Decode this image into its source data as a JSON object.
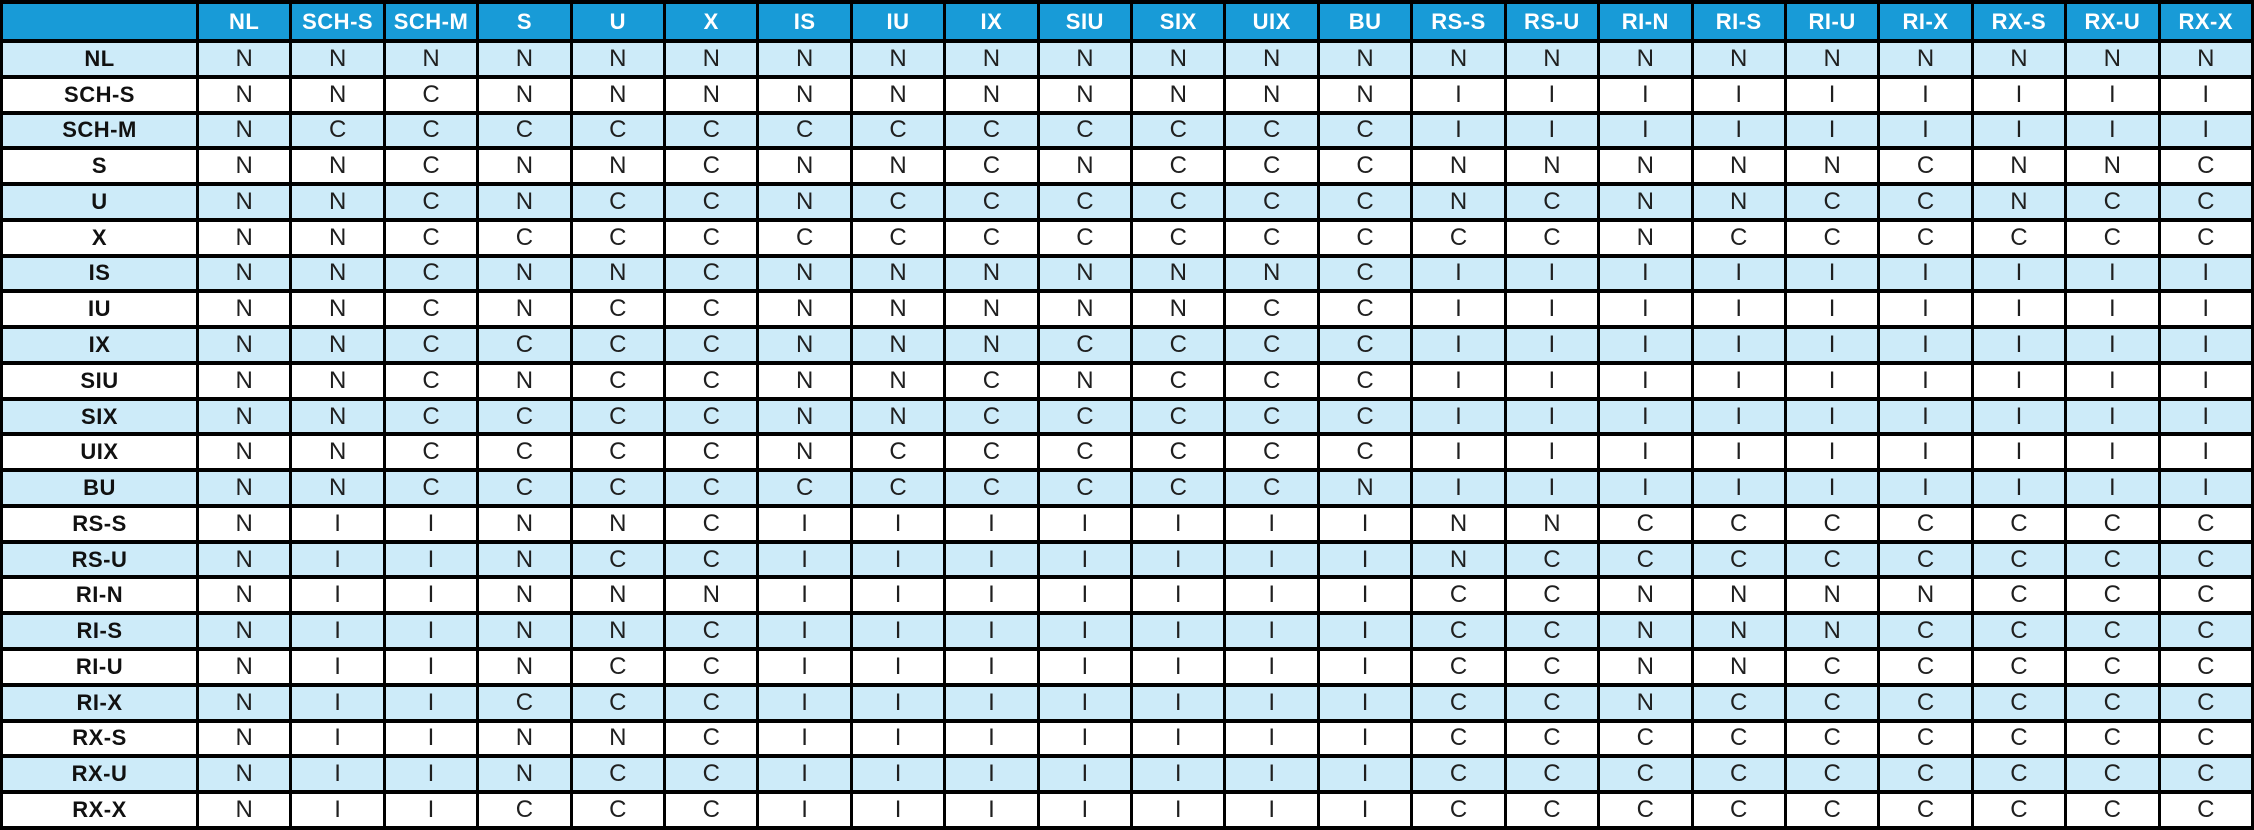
{
  "colors": {
    "header_bg": "#189BD7",
    "header_text": "#FFFFFF",
    "row_alt_bg": "#CDEBF9",
    "row_bg": "#FFFFFF",
    "border": "#000000",
    "cell_text": "#1F1F1F"
  },
  "chart_data": {
    "type": "table",
    "title": "",
    "corner_label": "",
    "legend_position": "none",
    "grid": true,
    "column_headers": [
      "NL",
      "SCH-S",
      "SCH-M",
      "S",
      "U",
      "X",
      "IS",
      "IU",
      "IX",
      "SIU",
      "SIX",
      "UIX",
      "BU",
      "RS-S",
      "RS-U",
      "RI-N",
      "RI-S",
      "RI-U",
      "RI-X",
      "RX-S",
      "RX-U",
      "RX-X"
    ],
    "row_headers": [
      "NL",
      "SCH-S",
      "SCH-M",
      "S",
      "U",
      "X",
      "IS",
      "IU",
      "IX",
      "SIU",
      "SIX",
      "UIX",
      "BU",
      "RS-S",
      "RS-U",
      "RI-N",
      "RI-S",
      "RI-U",
      "RI-X",
      "RX-S",
      "RX-U",
      "RX-X"
    ],
    "values": [
      [
        "N",
        "N",
        "N",
        "N",
        "N",
        "N",
        "N",
        "N",
        "N",
        "N",
        "N",
        "N",
        "N",
        "N",
        "N",
        "N",
        "N",
        "N",
        "N",
        "N",
        "N",
        "N"
      ],
      [
        "N",
        "N",
        "C",
        "N",
        "N",
        "N",
        "N",
        "N",
        "N",
        "N",
        "N",
        "N",
        "N",
        "I",
        "I",
        "I",
        "I",
        "I",
        "I",
        "I",
        "I",
        "I"
      ],
      [
        "N",
        "C",
        "C",
        "C",
        "C",
        "C",
        "C",
        "C",
        "C",
        "C",
        "C",
        "C",
        "C",
        "I",
        "I",
        "I",
        "I",
        "I",
        "I",
        "I",
        "I",
        "I"
      ],
      [
        "N",
        "N",
        "C",
        "N",
        "N",
        "C",
        "N",
        "N",
        "C",
        "N",
        "C",
        "C",
        "C",
        "N",
        "N",
        "N",
        "N",
        "N",
        "C",
        "N",
        "N",
        "C"
      ],
      [
        "N",
        "N",
        "C",
        "N",
        "C",
        "C",
        "N",
        "C",
        "C",
        "C",
        "C",
        "C",
        "C",
        "N",
        "C",
        "N",
        "N",
        "C",
        "C",
        "N",
        "C",
        "C"
      ],
      [
        "N",
        "N",
        "C",
        "C",
        "C",
        "C",
        "C",
        "C",
        "C",
        "C",
        "C",
        "C",
        "C",
        "C",
        "C",
        "N",
        "C",
        "C",
        "C",
        "C",
        "C",
        "C"
      ],
      [
        "N",
        "N",
        "C",
        "N",
        "N",
        "C",
        "N",
        "N",
        "N",
        "N",
        "N",
        "N",
        "C",
        "I",
        "I",
        "I",
        "I",
        "I",
        "I",
        "I",
        "I",
        "I"
      ],
      [
        "N",
        "N",
        "C",
        "N",
        "C",
        "C",
        "N",
        "N",
        "N",
        "N",
        "N",
        "C",
        "C",
        "I",
        "I",
        "I",
        "I",
        "I",
        "I",
        "I",
        "I",
        "I"
      ],
      [
        "N",
        "N",
        "C",
        "C",
        "C",
        "C",
        "N",
        "N",
        "N",
        "C",
        "C",
        "C",
        "C",
        "I",
        "I",
        "I",
        "I",
        "I",
        "I",
        "I",
        "I",
        "I"
      ],
      [
        "N",
        "N",
        "C",
        "N",
        "C",
        "C",
        "N",
        "N",
        "C",
        "N",
        "C",
        "C",
        "C",
        "I",
        "I",
        "I",
        "I",
        "I",
        "I",
        "I",
        "I",
        "I"
      ],
      [
        "N",
        "N",
        "C",
        "C",
        "C",
        "C",
        "N",
        "N",
        "C",
        "C",
        "C",
        "C",
        "C",
        "I",
        "I",
        "I",
        "I",
        "I",
        "I",
        "I",
        "I",
        "I"
      ],
      [
        "N",
        "N",
        "C",
        "C",
        "C",
        "C",
        "N",
        "C",
        "C",
        "C",
        "C",
        "C",
        "C",
        "I",
        "I",
        "I",
        "I",
        "I",
        "I",
        "I",
        "I",
        "I"
      ],
      [
        "N",
        "N",
        "C",
        "C",
        "C",
        "C",
        "C",
        "C",
        "C",
        "C",
        "C",
        "C",
        "N",
        "I",
        "I",
        "I",
        "I",
        "I",
        "I",
        "I",
        "I",
        "I"
      ],
      [
        "N",
        "I",
        "I",
        "N",
        "N",
        "C",
        "I",
        "I",
        "I",
        "I",
        "I",
        "I",
        "I",
        "N",
        "N",
        "C",
        "C",
        "C",
        "C",
        "C",
        "C",
        "C"
      ],
      [
        "N",
        "I",
        "I",
        "N",
        "C",
        "C",
        "I",
        "I",
        "I",
        "I",
        "I",
        "I",
        "I",
        "N",
        "C",
        "C",
        "C",
        "C",
        "C",
        "C",
        "C",
        "C"
      ],
      [
        "N",
        "I",
        "I",
        "N",
        "N",
        "N",
        "I",
        "I",
        "I",
        "I",
        "I",
        "I",
        "I",
        "C",
        "C",
        "N",
        "N",
        "N",
        "N",
        "C",
        "C",
        "C"
      ],
      [
        "N",
        "I",
        "I",
        "N",
        "N",
        "C",
        "I",
        "I",
        "I",
        "I",
        "I",
        "I",
        "I",
        "C",
        "C",
        "N",
        "N",
        "N",
        "C",
        "C",
        "C",
        "C"
      ],
      [
        "N",
        "I",
        "I",
        "N",
        "C",
        "C",
        "I",
        "I",
        "I",
        "I",
        "I",
        "I",
        "I",
        "C",
        "C",
        "N",
        "N",
        "C",
        "C",
        "C",
        "C",
        "C"
      ],
      [
        "N",
        "I",
        "I",
        "C",
        "C",
        "C",
        "I",
        "I",
        "I",
        "I",
        "I",
        "I",
        "I",
        "C",
        "C",
        "N",
        "C",
        "C",
        "C",
        "C",
        "C",
        "C"
      ],
      [
        "N",
        "I",
        "I",
        "N",
        "N",
        "C",
        "I",
        "I",
        "I",
        "I",
        "I",
        "I",
        "I",
        "C",
        "C",
        "C",
        "C",
        "C",
        "C",
        "C",
        "C",
        "C"
      ],
      [
        "N",
        "I",
        "I",
        "N",
        "C",
        "C",
        "I",
        "I",
        "I",
        "I",
        "I",
        "I",
        "I",
        "C",
        "C",
        "C",
        "C",
        "C",
        "C",
        "C",
        "C",
        "C"
      ],
      [
        "N",
        "I",
        "I",
        "C",
        "C",
        "C",
        "I",
        "I",
        "I",
        "I",
        "I",
        "I",
        "I",
        "C",
        "C",
        "C",
        "C",
        "C",
        "C",
        "C",
        "C",
        "C"
      ]
    ]
  }
}
